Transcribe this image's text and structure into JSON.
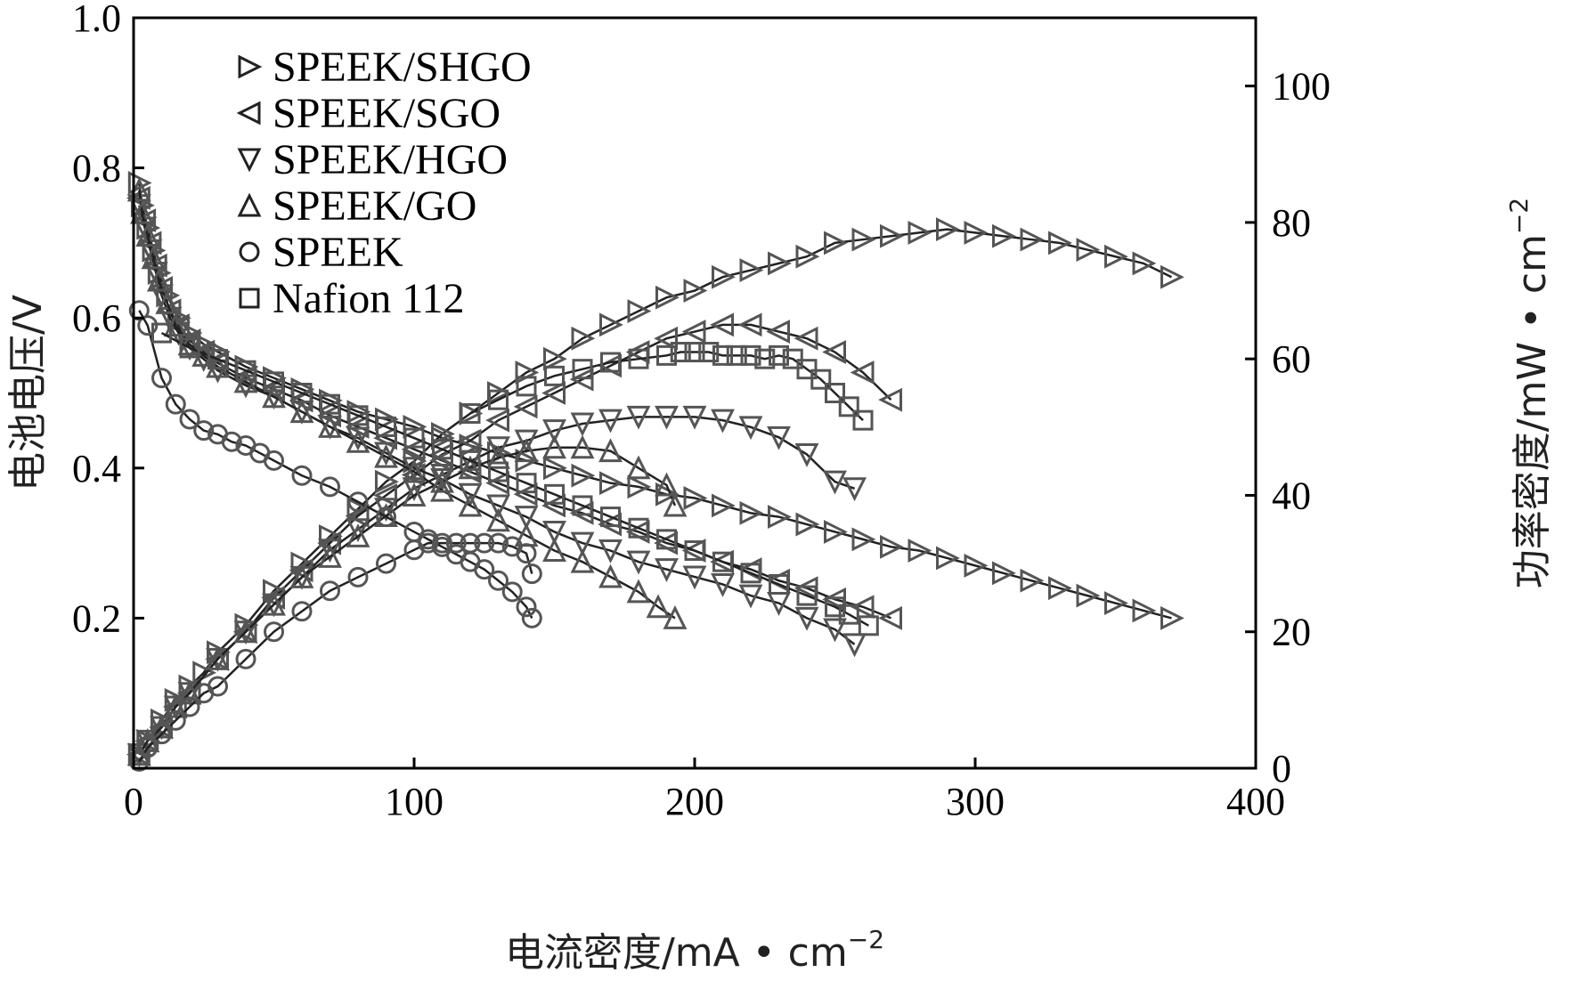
{
  "chart_data": {
    "type": "scatter",
    "xlabel": "电流密度/mA • cm",
    "xlabel_sup": "−2",
    "ylabel_left": "电池电压/V",
    "ylabel_right": "功率密度/mW • cm",
    "ylabel_right_sup": "−2",
    "xlim": [
      0,
      400
    ],
    "ylim_left": [
      0,
      1.0
    ],
    "ylim_right": [
      0,
      110
    ],
    "x_ticks": [
      0,
      100,
      200,
      300,
      400
    ],
    "x_tick_labels": [
      "0",
      "100",
      "200",
      "300",
      "400"
    ],
    "y_left_ticks": [
      0.2,
      0.4,
      0.6,
      0.8,
      1.0
    ],
    "y_left_tick_labels": [
      "0.2",
      "0.4",
      "0.6",
      "0.8",
      "1.0"
    ],
    "y_right_ticks": [
      0,
      20,
      40,
      60,
      80,
      100
    ],
    "y_right_tick_labels": [
      "0",
      "20",
      "40",
      "60",
      "80",
      "100"
    ],
    "grid": false,
    "legend_position": "top-left",
    "series": [
      {
        "name": "SPEEK/SHGO",
        "marker": "triangle-right",
        "color": "#555555",
        "voltage_x": [
          2,
          3,
          5,
          7,
          9,
          12,
          16,
          20,
          25,
          30,
          40,
          50,
          60,
          70,
          80,
          90,
          100,
          110,
          120,
          130,
          140,
          150,
          160,
          170,
          180,
          190,
          200,
          210,
          220,
          230,
          240,
          250,
          260,
          270,
          280,
          290,
          300,
          310,
          320,
          330,
          340,
          350,
          360,
          370
        ],
        "voltage_y": [
          0.78,
          0.75,
          0.72,
          0.69,
          0.66,
          0.63,
          0.6,
          0.58,
          0.565,
          0.555,
          0.535,
          0.52,
          0.505,
          0.49,
          0.475,
          0.465,
          0.455,
          0.44,
          0.43,
          0.42,
          0.41,
          0.4,
          0.39,
          0.38,
          0.375,
          0.365,
          0.36,
          0.35,
          0.34,
          0.335,
          0.325,
          0.315,
          0.305,
          0.295,
          0.29,
          0.28,
          0.27,
          0.26,
          0.25,
          0.24,
          0.23,
          0.22,
          0.21,
          0.2
        ],
        "power_x": [
          2,
          5,
          10,
          15,
          20,
          25,
          30,
          40,
          50,
          60,
          70,
          80,
          90,
          100,
          110,
          120,
          130,
          140,
          150,
          160,
          170,
          180,
          190,
          200,
          210,
          220,
          230,
          240,
          250,
          260,
          270,
          280,
          290,
          300,
          310,
          320,
          330,
          340,
          350,
          360,
          370
        ],
        "power_y": [
          2,
          4,
          7,
          10,
          12,
          14,
          17,
          21,
          26,
          30,
          34,
          38,
          42,
          45,
          49,
          52,
          55,
          58,
          60,
          63,
          65,
          67,
          69,
          70,
          72,
          73,
          74,
          75,
          77,
          77.5,
          78,
          78.5,
          79,
          78.5,
          78,
          77.5,
          77,
          76,
          75,
          74,
          72
        ]
      },
      {
        "name": "SPEEK/SGO",
        "marker": "triangle-left",
        "color": "#555555",
        "voltage_x": [
          2,
          4,
          6,
          8,
          10,
          13,
          16,
          20,
          25,
          30,
          40,
          50,
          60,
          70,
          80,
          90,
          100,
          110,
          120,
          130,
          140,
          150,
          160,
          170,
          180,
          190,
          200,
          210,
          220,
          230,
          240,
          250,
          260,
          270
        ],
        "voltage_y": [
          0.76,
          0.73,
          0.7,
          0.67,
          0.64,
          0.61,
          0.59,
          0.57,
          0.555,
          0.54,
          0.52,
          0.505,
          0.49,
          0.47,
          0.455,
          0.44,
          0.425,
          0.41,
          0.395,
          0.38,
          0.365,
          0.35,
          0.34,
          0.325,
          0.315,
          0.3,
          0.29,
          0.275,
          0.265,
          0.25,
          0.24,
          0.225,
          0.215,
          0.2
        ],
        "power_x": [
          2,
          5,
          10,
          15,
          20,
          30,
          40,
          50,
          60,
          70,
          80,
          90,
          100,
          110,
          120,
          130,
          140,
          150,
          160,
          170,
          180,
          190,
          200,
          210,
          220,
          230,
          240,
          250,
          260,
          270
        ],
        "power_y": [
          2,
          4,
          6,
          9,
          11,
          16,
          20,
          25,
          29,
          33,
          37,
          40,
          43,
          46,
          48,
          51,
          53,
          55,
          57,
          59,
          61,
          63,
          64,
          65,
          65,
          64,
          63,
          61,
          58,
          54
        ]
      },
      {
        "name": "SPEEK/HGO",
        "marker": "triangle-down",
        "color": "#555555",
        "voltage_x": [
          2,
          4,
          6,
          8,
          10,
          13,
          16,
          20,
          25,
          30,
          40,
          50,
          60,
          70,
          80,
          90,
          100,
          110,
          120,
          130,
          140,
          150,
          160,
          170,
          180,
          190,
          200,
          210,
          220,
          230,
          240,
          250,
          257
        ],
        "voltage_y": [
          0.75,
          0.72,
          0.69,
          0.66,
          0.63,
          0.6,
          0.58,
          0.56,
          0.545,
          0.53,
          0.51,
          0.495,
          0.475,
          0.455,
          0.44,
          0.42,
          0.4,
          0.385,
          0.365,
          0.35,
          0.335,
          0.315,
          0.3,
          0.29,
          0.275,
          0.265,
          0.255,
          0.245,
          0.23,
          0.22,
          0.2,
          0.185,
          0.165
        ],
        "power_x": [
          2,
          5,
          10,
          15,
          20,
          30,
          40,
          50,
          60,
          70,
          80,
          90,
          100,
          110,
          120,
          130,
          140,
          150,
          160,
          170,
          180,
          190,
          200,
          210,
          220,
          230,
          240,
          250,
          257
        ],
        "power_y": [
          2,
          4,
          6,
          9,
          11,
          16,
          20,
          24,
          28,
          32,
          35,
          38,
          41,
          43,
          45,
          47,
          48,
          49.5,
          50.5,
          51,
          51.5,
          51.5,
          51.5,
          51,
          50,
          48.5,
          46,
          42,
          41
        ]
      },
      {
        "name": "SPEEK/GO",
        "marker": "triangle-up",
        "color": "#555555",
        "voltage_x": [
          2,
          3,
          5,
          7,
          9,
          12,
          15,
          20,
          25,
          30,
          40,
          50,
          60,
          70,
          80,
          90,
          100,
          110,
          120,
          130,
          140,
          150,
          160,
          170,
          180,
          187,
          193
        ],
        "voltage_y": [
          0.77,
          0.74,
          0.71,
          0.68,
          0.65,
          0.62,
          0.59,
          0.565,
          0.55,
          0.535,
          0.515,
          0.495,
          0.475,
          0.455,
          0.435,
          0.415,
          0.395,
          0.37,
          0.35,
          0.33,
          0.31,
          0.29,
          0.275,
          0.255,
          0.235,
          0.215,
          0.2
        ],
        "power_x": [
          2,
          5,
          10,
          15,
          20,
          30,
          40,
          50,
          60,
          70,
          80,
          90,
          100,
          110,
          120,
          130,
          140,
          150,
          160,
          170,
          180,
          190,
          193
        ],
        "power_y": [
          2,
          4,
          6,
          9,
          11,
          16,
          20,
          24,
          28,
          31,
          34,
          37,
          40,
          42,
          44,
          45.5,
          46.5,
          47,
          47,
          46.5,
          44,
          41.5,
          38.5
        ]
      },
      {
        "name": "SPEEK",
        "marker": "circle",
        "color": "#555555",
        "voltage_x": [
          2,
          5,
          10,
          15,
          20,
          25,
          30,
          35,
          40,
          45,
          50,
          60,
          70,
          80,
          90,
          100,
          105,
          110,
          115,
          120,
          125,
          130,
          135,
          140,
          142
        ],
        "voltage_y": [
          0.61,
          0.59,
          0.52,
          0.485,
          0.465,
          0.45,
          0.445,
          0.435,
          0.43,
          0.42,
          0.41,
          0.39,
          0.375,
          0.355,
          0.335,
          0.315,
          0.305,
          0.295,
          0.285,
          0.275,
          0.265,
          0.25,
          0.235,
          0.215,
          0.2
        ],
        "power_x": [
          2,
          5,
          10,
          15,
          20,
          25,
          30,
          40,
          50,
          60,
          70,
          80,
          90,
          100,
          105,
          110,
          115,
          120,
          125,
          130,
          135,
          140,
          142
        ],
        "power_y": [
          1,
          3,
          5,
          7,
          9,
          11,
          12,
          16,
          20,
          23,
          26,
          28,
          30,
          32,
          33,
          33,
          33,
          33,
          33,
          33,
          32.5,
          31.5,
          28.5
        ]
      },
      {
        "name": "Nafion 112",
        "marker": "square",
        "color": "#555555",
        "voltage_x": [
          10,
          20,
          30,
          40,
          50,
          60,
          70,
          80,
          90,
          100,
          110,
          120,
          130,
          140,
          150,
          160,
          170,
          180,
          190,
          200,
          210,
          220,
          230,
          240,
          250,
          255,
          262
        ],
        "voltage_y": [
          0.58,
          0.56,
          0.545,
          0.53,
          0.515,
          0.5,
          0.485,
          0.47,
          0.455,
          0.44,
          0.425,
          0.41,
          0.395,
          0.38,
          0.365,
          0.35,
          0.335,
          0.32,
          0.305,
          0.29,
          0.275,
          0.26,
          0.245,
          0.23,
          0.215,
          0.205,
          0.19
        ],
        "power_x": [
          120,
          130,
          140,
          150,
          160,
          170,
          180,
          190,
          195,
          200,
          205,
          210,
          215,
          220,
          225,
          230,
          235,
          240,
          245,
          250,
          255,
          260
        ],
        "power_y": [
          52,
          54,
          56,
          57.5,
          58.5,
          59.5,
          60,
          60.5,
          61,
          61,
          61,
          60.5,
          60.5,
          60.5,
          60,
          60.5,
          60,
          58.5,
          57,
          55,
          53,
          51
        ]
      }
    ]
  }
}
